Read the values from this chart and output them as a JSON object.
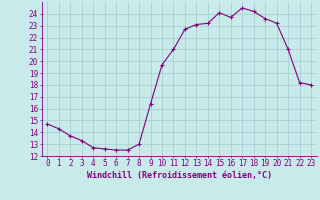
{
  "x": [
    0,
    1,
    2,
    3,
    4,
    5,
    6,
    7,
    8,
    9,
    10,
    11,
    12,
    13,
    14,
    15,
    16,
    17,
    18,
    19,
    20,
    21,
    22,
    23
  ],
  "y": [
    14.7,
    14.3,
    13.7,
    13.3,
    12.7,
    12.6,
    12.5,
    12.5,
    13.0,
    16.4,
    19.7,
    21.0,
    22.7,
    23.1,
    23.2,
    24.1,
    23.7,
    24.5,
    24.2,
    23.6,
    23.2,
    21.0,
    18.2,
    18.0
  ],
  "line_color": "#800080",
  "marker": "+",
  "bg_color": "#c8eaea",
  "grid_color": "#a0cccc",
  "axis_color": "#800080",
  "xlabel": "Windchill (Refroidissement éolien,°C)",
  "xlabel_fontsize": 6.0,
  "tick_fontsize": 5.5,
  "ylim": [
    12,
    25
  ],
  "xlim": [
    -0.5,
    23.5
  ],
  "yticks": [
    12,
    13,
    14,
    15,
    16,
    17,
    18,
    19,
    20,
    21,
    22,
    23,
    24
  ],
  "xticks": [
    0,
    1,
    2,
    3,
    4,
    5,
    6,
    7,
    8,
    9,
    10,
    11,
    12,
    13,
    14,
    15,
    16,
    17,
    18,
    19,
    20,
    21,
    22,
    23
  ]
}
